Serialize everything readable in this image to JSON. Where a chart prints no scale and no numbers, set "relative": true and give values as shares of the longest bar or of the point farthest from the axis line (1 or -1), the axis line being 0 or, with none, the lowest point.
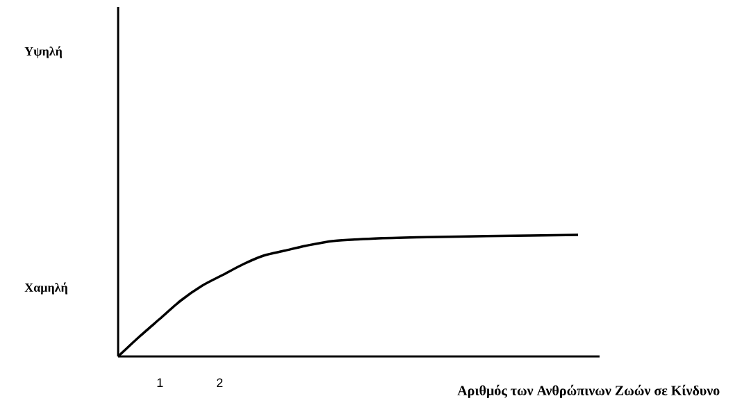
{
  "chart_data": {
    "type": "line",
    "relative": true,
    "xlabel": "Αριθμός των Ανθρώπινων Ζωών σε Κίνδυνο",
    "annotations": [
      "Υψηλή",
      "Χαμηλή"
    ],
    "x": [
      0.3,
      0.65,
      1.0,
      1.35,
      1.7,
      2.05,
      2.4,
      2.74,
      3.09,
      3.44,
      3.91,
      4.6,
      5.3,
      6.47,
      8.0
    ],
    "values": [
      0,
      0.16,
      0.31,
      0.46,
      0.58,
      0.67,
      0.76,
      0.83,
      0.87,
      0.91,
      0.95,
      0.97,
      0.98,
      0.99,
      1
    ],
    "color": "#000000",
    "marker": "none",
    "line_style": "solid",
    "xlim": [
      0.3,
      8.36
    ],
    "xticks": [
      1,
      2
    ]
  }
}
